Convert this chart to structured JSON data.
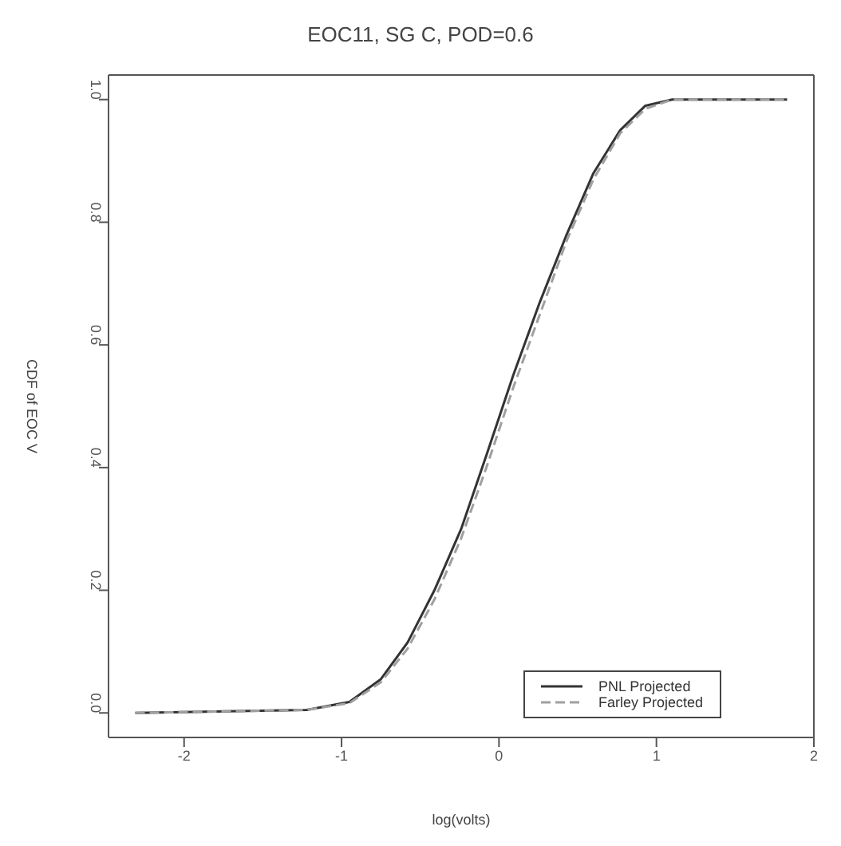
{
  "chart_data": {
    "type": "line",
    "title": "EOC11, SG C, POD=0.6",
    "xlabel": "log(volts)",
    "ylabel": "CDF of EOC V",
    "xlim": [
      -2.48,
      2.0
    ],
    "xticks": [
      -2,
      -1,
      0,
      1,
      2
    ],
    "ylim": [
      -0.04,
      1.04
    ],
    "yticks": [
      {
        "value": 0,
        "label": "0.0"
      },
      {
        "value": 0.2,
        "label": "0.2"
      },
      {
        "value": 0.4,
        "label": "0.4"
      },
      {
        "value": 0.6,
        "label": "0.6"
      },
      {
        "value": 0.8,
        "label": "0.8"
      },
      {
        "value": 1,
        "label": "1.0"
      }
    ],
    "legend": "bottom right",
    "marker": "none",
    "series": [
      {
        "name": "PNL Projected",
        "color": "#333333",
        "line_style": "solid",
        "x": [
          -2.31,
          -1.22,
          -0.95,
          -0.75,
          -0.58,
          -0.41,
          -0.24,
          -0.08,
          0.09,
          0.26,
          0.43,
          0.6,
          0.77,
          0.93,
          1.1,
          1.83
        ],
        "values": [
          0,
          0.005,
          0.018,
          0.055,
          0.115,
          0.2,
          0.3,
          0.42,
          0.55,
          0.67,
          0.78,
          0.88,
          0.95,
          0.99,
          1.0,
          1.0
        ]
      },
      {
        "name": "Farley Projected",
        "color": "#a0a0a0",
        "line_style": "dashed",
        "x": [
          -2.31,
          -1.22,
          -0.95,
          -0.75,
          -0.58,
          -0.41,
          -0.24,
          -0.08,
          0.09,
          0.26,
          0.43,
          0.6,
          0.77,
          0.93,
          1.1,
          1.83
        ],
        "values": [
          0,
          0.005,
          0.016,
          0.05,
          0.105,
          0.185,
          0.285,
          0.4,
          0.53,
          0.65,
          0.77,
          0.87,
          0.945,
          0.985,
          1.0,
          1.0
        ]
      }
    ]
  }
}
